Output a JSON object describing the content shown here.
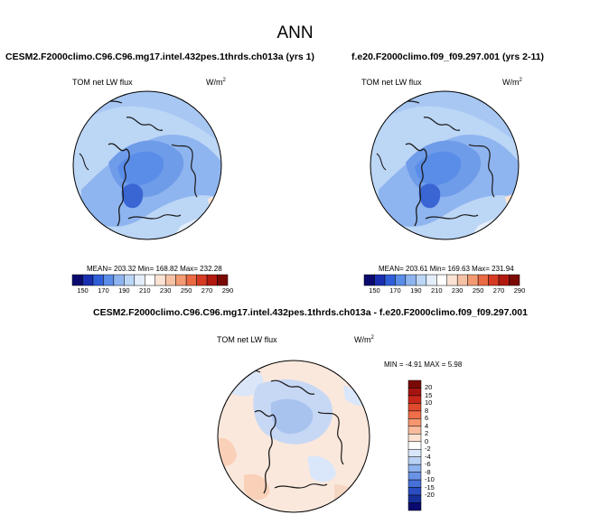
{
  "title": "ANN",
  "panels": [
    {
      "title": "CESM2.F2000climo.C96.C96.mg17.intel.432pes.1thrds.ch013a (yrs 1)",
      "variable": "TOM net LW flux",
      "units": "W/m",
      "units_sup": "2",
      "stats": "MEAN= 203.32  Min= 168.82  Max= 232.28"
    },
    {
      "title": "f.e20.F2000climo.f09_f09.297.001 (yrs 2-11)",
      "variable": "TOM net LW flux",
      "units": "W/m",
      "units_sup": "2",
      "stats": "MEAN= 203.61  Min= 169.63  Max= 231.94"
    },
    {
      "title": "CESM2.F2000climo.C96.C96.mg17.intel.432pes.1thrds.ch013a - f.e20.F2000climo.f09_f09.297.001",
      "variable": "TOM net LW flux",
      "units": "W/m",
      "units_sup": "2",
      "stats": "MIN =  -4.91  MAX =   5.98"
    }
  ],
  "colorbar_abs": {
    "labels": [
      "150",
      "170",
      "190",
      "210",
      "230",
      "250",
      "270",
      "290"
    ],
    "colors": [
      "#0a0a6e",
      "#1a2fb0",
      "#2f5ed8",
      "#5a8de8",
      "#8fb5f0",
      "#bcd6f6",
      "#e4eefb",
      "#ffffff",
      "#fbe3d4",
      "#f6c2a6",
      "#f39a72",
      "#ea6a44",
      "#d63a22",
      "#b21a10",
      "#7a0a05"
    ]
  },
  "colorbar_diff": {
    "labels": [
      "20",
      "15",
      "10",
      "8",
      "6",
      "4",
      "2",
      "0",
      "-2",
      "-4",
      "-6",
      "-8",
      "-10",
      "-15",
      "-20"
    ],
    "colors": [
      "#7a0a05",
      "#a51410",
      "#c8261a",
      "#e04a2c",
      "#f06e48",
      "#f6966e",
      "#f9bb9c",
      "#fde2d2",
      "#ffffff",
      "#dae7fa",
      "#b8d0f4",
      "#8fb2ee",
      "#6a93e6",
      "#4670d8",
      "#2a4cc0",
      "#17309a",
      "#0a0a6e"
    ]
  }
}
